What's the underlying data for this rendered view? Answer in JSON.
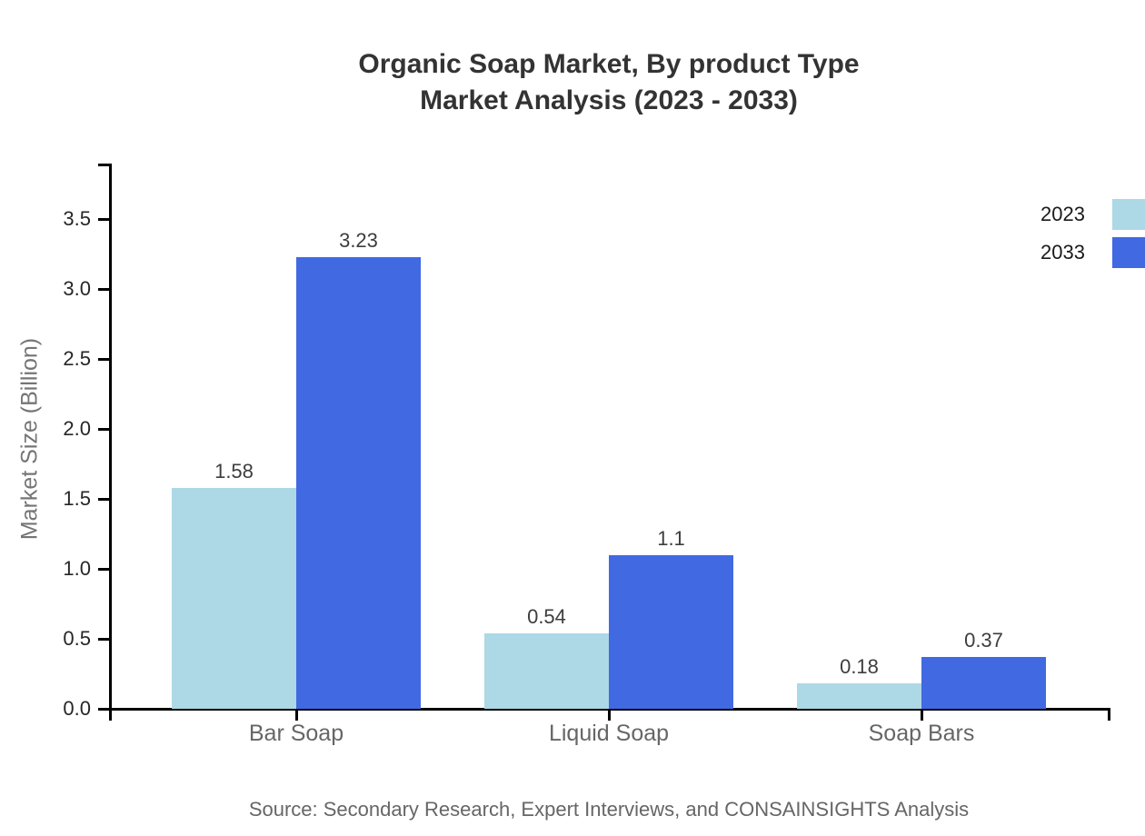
{
  "title": {
    "line1": "Organic Soap Market, By product Type",
    "line2": "Market Analysis (2023 - 2033)"
  },
  "source_note": "Source: Secondary Research, Expert Interviews, and CONSAINSIGHTS Analysis",
  "legend": {
    "items": [
      {
        "label": "2023",
        "color": "#ADD8E6"
      },
      {
        "label": "2033",
        "color": "#4169E1"
      }
    ]
  },
  "chart_data": {
    "type": "bar",
    "title": "Organic Soap Market, By product Type Market Analysis (2023 - 2033)",
    "categories": [
      "Bar Soap",
      "Liquid Soap",
      "Soap Bars"
    ],
    "series": [
      {
        "name": "2023",
        "color": "#ADD8E6",
        "values": [
          1.58,
          0.54,
          0.18
        ]
      },
      {
        "name": "2033",
        "color": "#4169E1",
        "values": [
          3.23,
          1.1,
          0.37
        ]
      }
    ],
    "xlabel": "",
    "ylabel": "Market Size (Billion)",
    "ylim": [
      0,
      3.9
    ],
    "yticks": [
      0.0,
      0.5,
      1.0,
      1.5,
      2.0,
      2.5,
      3.0,
      3.5
    ],
    "ytick_labels": [
      "0.0",
      "0.5",
      "1.0",
      "1.5",
      "2.0",
      "2.5",
      "3.0",
      "3.5"
    ],
    "value_label_format": "plain",
    "grid": false,
    "legend_position": "top-right",
    "bar_colors": {
      "series_2023": "#ADD8E6",
      "series_2033": "#4169E1"
    }
  }
}
